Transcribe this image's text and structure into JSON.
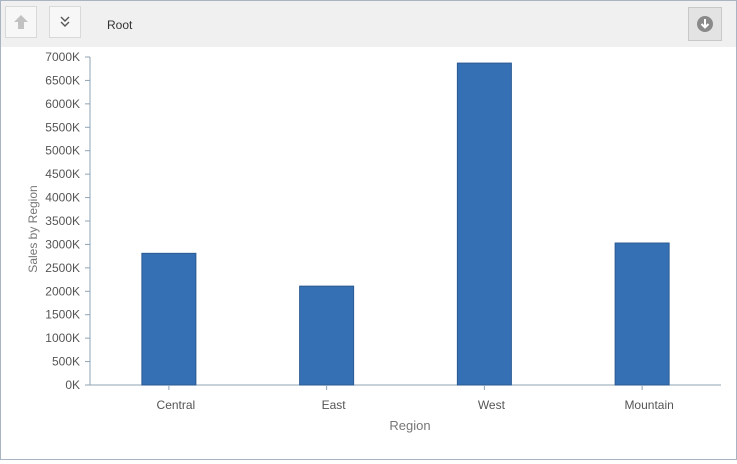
{
  "toolbar": {
    "up_icon": "arrow-up-icon",
    "drill_icon": "double-chevron-down-icon",
    "breadcrumb": "Root",
    "download_icon": "download-circle-icon"
  },
  "colors": {
    "bar": "#3670b4",
    "axis": "#8fa3b5",
    "text": "#555555"
  },
  "chart_data": {
    "type": "bar",
    "categories": [
      "Central",
      "East",
      "West",
      "Mountain"
    ],
    "values": [
      2810,
      2110,
      6870,
      3030
    ],
    "xlabel": "Region",
    "ylabel": "Sales by Region",
    "ylim": [
      0,
      7000
    ],
    "yticks": [
      0,
      500,
      1000,
      1500,
      2000,
      2500,
      3000,
      3500,
      4000,
      4500,
      5000,
      5500,
      6000,
      6500,
      7000
    ],
    "ytick_labels": [
      "0K",
      "500K",
      "1000K",
      "1500K",
      "2000K",
      "2500K",
      "3000K",
      "3500K",
      "4000K",
      "4500K",
      "5000K",
      "5500K",
      "6000K",
      "6500K",
      "7000K"
    ],
    "grid": false,
    "legend": "none"
  }
}
